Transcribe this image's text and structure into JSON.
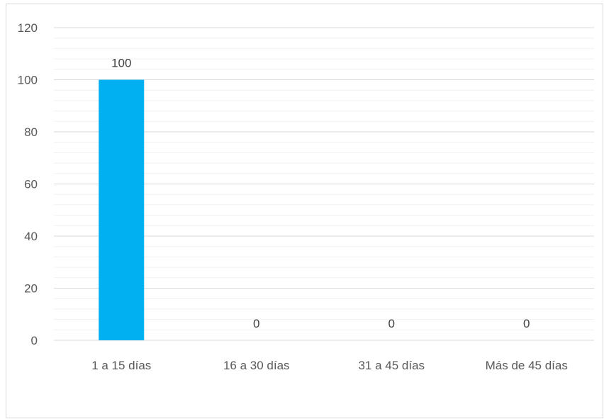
{
  "chart_data": {
    "type": "bar",
    "categories": [
      "1 a 15 días",
      "16 a 30 días",
      "31 a 45 días",
      "Más de 45 días"
    ],
    "values": [
      100,
      0,
      0,
      0
    ],
    "data_labels": [
      "100",
      "0",
      "0",
      "0"
    ],
    "ylim": [
      0,
      120
    ],
    "yticks": [
      0,
      20,
      40,
      60,
      80,
      100,
      120
    ],
    "ytick_labels": [
      "0",
      "20",
      "40",
      "60",
      "80",
      "100",
      "120"
    ],
    "minor_ystep": 4,
    "grid": true,
    "legend": "none",
    "bar_color": "#00b0f0",
    "grid_major_color": "#d9d9d9",
    "grid_minor_color": "#f0f0f0"
  }
}
